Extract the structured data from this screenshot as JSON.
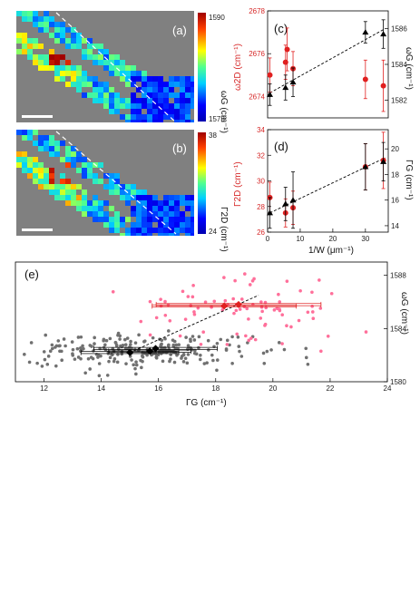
{
  "panels": {
    "a": {
      "label": "(a)",
      "cbar_max": "1590",
      "cbar_min": "1578",
      "cbar_label": "ωG (cm⁻¹)"
    },
    "b": {
      "label": "(b)",
      "cbar_max": "38",
      "cbar_min": "24",
      "cbar_label": "Γ2D (cm⁻¹)"
    },
    "c": {
      "label": "(c)"
    },
    "d": {
      "label": "(d)"
    },
    "e": {
      "label": "(e)"
    }
  },
  "colors": {
    "red": "#e02020",
    "pink": "#ff6f9a",
    "gray": "#707070",
    "black": "#000000",
    "map_bg": "#808080"
  },
  "chart_data": [
    {
      "id": "c",
      "type": "scatter",
      "xlabel": "",
      "ylabel_left": "ω2D (cm⁻¹)",
      "ylabel_right": "ωG (cm⁻¹)",
      "xlim": [
        0,
        37
      ],
      "ylim_left": [
        2673,
        2678
      ],
      "ylim_right": [
        1581,
        1587
      ],
      "left_ticks": [
        "2674",
        "2676",
        "2678"
      ],
      "right_ticks": [
        "1582",
        "1584",
        "1586"
      ],
      "series": [
        {
          "axis": "left",
          "color": "red",
          "marker": "circle",
          "points": [
            [
              0.7,
              2675.0,
              0.8
            ],
            [
              5.5,
              2675.6,
              0.8
            ],
            [
              6.0,
              2676.2,
              1.0
            ],
            [
              7.8,
              2675.3,
              0.8
            ],
            [
              30.0,
              2674.8,
              0.9
            ],
            [
              35.5,
              2674.5,
              1.2
            ]
          ]
        },
        {
          "axis": "right",
          "color": "black",
          "marker": "triangle",
          "points": [
            [
              0.7,
              1582.3,
              0.6
            ],
            [
              5.5,
              1582.7,
              0.7
            ],
            [
              7.8,
              1583.0,
              0.8
            ],
            [
              30.0,
              1585.8,
              0.6
            ],
            [
              35.5,
              1585.7,
              0.8
            ]
          ]
        }
      ],
      "fit_line": [
        [
          0.7,
          1582.4
        ],
        [
          36.0,
          1586.0
        ]
      ]
    },
    {
      "id": "d",
      "type": "scatter",
      "xlabel": "1/W (μm⁻¹)",
      "ylabel_left": "Γ2D (cm⁻¹)",
      "ylabel_right": "ΓG (cm⁻¹)",
      "xlim": [
        0,
        37
      ],
      "ylim_left": [
        26,
        34
      ],
      "ylim_right": [
        13.5,
        21.5
      ],
      "x_ticks": [
        "0",
        "10",
        "20",
        "30"
      ],
      "left_ticks": [
        "26",
        "28",
        "30",
        "32",
        "34"
      ],
      "right_ticks": [
        "14",
        "16",
        "18",
        "20"
      ],
      "series": [
        {
          "axis": "left",
          "color": "red",
          "marker": "circle",
          "points": [
            [
              0.7,
              28.7,
              1.2
            ],
            [
              5.5,
              27.5,
              1.1
            ],
            [
              7.8,
              27.9,
              1.3
            ],
            [
              30.0,
              31.1,
              1.8
            ],
            [
              35.5,
              31.6,
              2.2
            ]
          ]
        },
        {
          "axis": "right",
          "color": "black",
          "marker": "triangle",
          "points": [
            [
              0.7,
              15.0,
              1.2
            ],
            [
              5.5,
              15.7,
              1.3
            ],
            [
              7.8,
              16.0,
              2.2
            ],
            [
              30.0,
              18.6,
              1.8
            ],
            [
              35.5,
              19.0,
              1.5
            ]
          ]
        }
      ],
      "fit_line": [
        [
          0.7,
          15.0
        ],
        [
          36.0,
          19.3
        ]
      ]
    },
    {
      "id": "e",
      "type": "scatter",
      "xlabel": "ΓG (cm⁻¹)",
      "ylabel_right": "ωG (cm⁻¹)",
      "xlim": [
        11,
        24
      ],
      "ylim": [
        1580,
        1589
      ],
      "x_ticks": [
        "12",
        "14",
        "16",
        "18",
        "20",
        "22",
        "24"
      ],
      "right_ticks": [
        "1580",
        "1584",
        "1588"
      ],
      "series": [
        {
          "name": "",
          "color": "gray",
          "cloud": {
            "cx": 15.3,
            "cy": 1582.3,
            "sx": 1.9,
            "sy": 0.65,
            "n": 240,
            "seed": 7
          }
        },
        {
          "name": "",
          "color": "pink",
          "cloud": {
            "cx": 18.8,
            "cy": 1585.4,
            "sx": 1.9,
            "sy": 1.3,
            "n": 85,
            "seed": 13
          }
        }
      ],
      "means": [
        {
          "color": "black",
          "points": [
            [
              15.0,
              1582.2,
              0.95
            ],
            [
              15.7,
              1582.3,
              0.8
            ],
            [
              15.9,
              1582.5,
              1.2
            ]
          ]
        },
        {
          "color": "red",
          "points": [
            [
              18.3,
              1585.7,
              1.4
            ],
            [
              18.8,
              1585.8,
              1.6
            ]
          ]
        }
      ],
      "fit_line": [
        [
          15.0,
          1582.2
        ],
        [
          19.5,
          1586.5
        ]
      ]
    }
  ]
}
